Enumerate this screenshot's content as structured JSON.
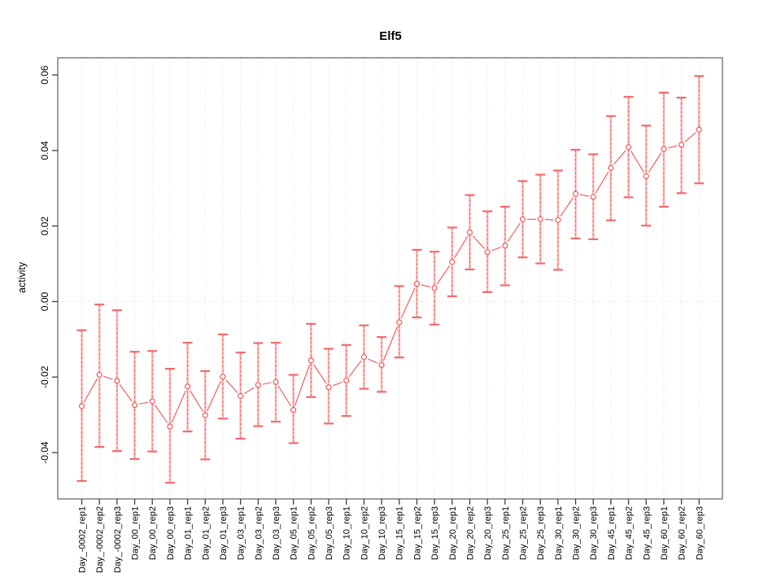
{
  "chart_data": {
    "type": "scatter",
    "title": "Elf5",
    "xlabel": "",
    "ylabel": "activity",
    "legend": "none",
    "marker": "open-circle",
    "categories": [
      "Day_-0002_rep1",
      "Day_-0002_rep2",
      "Day_-0002_rep3",
      "Day_00_rep1",
      "Day_00_rep2",
      "Day_00_rep3",
      "Day_01_rep1",
      "Day_01_rep2",
      "Day_01_rep3",
      "Day_03_rep1",
      "Day_03_rep2",
      "Day_03_rep3",
      "Day_05_rep1",
      "Day_05_rep2",
      "Day_05_rep3",
      "Day_10_rep1",
      "Day_10_rep2",
      "Day_10_rep3",
      "Day_15_rep1",
      "Day_15_rep2",
      "Day_15_rep3",
      "Day_20_rep1",
      "Day_20_rep2",
      "Day_20_rep3",
      "Day_25_rep1",
      "Day_25_rep2",
      "Day_25_rep3",
      "Day_30_rep1",
      "Day_30_rep2",
      "Day_30_rep3",
      "Day_45_rep1",
      "Day_45_rep2",
      "Day_45_rep3",
      "Day_60_rep1",
      "Day_60_rep2",
      "Day_60_rep3"
    ],
    "series": [
      {
        "name": "Elf5 activity",
        "values": [
          -0.0277,
          -0.0194,
          -0.021,
          -0.0274,
          -0.0264,
          -0.0331,
          -0.0225,
          -0.0301,
          -0.0199,
          -0.025,
          -0.0221,
          -0.0213,
          -0.0287,
          -0.0156,
          -0.0227,
          -0.0209,
          -0.0147,
          -0.0168,
          -0.0055,
          0.0047,
          0.0036,
          0.0105,
          0.0183,
          0.0131,
          0.0148,
          0.0218,
          0.0218,
          0.0216,
          0.0285,
          0.0277,
          0.0354,
          0.0409,
          0.0332,
          0.0404,
          0.0415,
          0.0455
        ],
        "ci_lower": [
          -0.0475,
          -0.0385,
          -0.0396,
          -0.0417,
          -0.0397,
          -0.048,
          -0.0344,
          -0.0418,
          -0.031,
          -0.0363,
          -0.033,
          -0.0318,
          -0.0375,
          -0.0253,
          -0.0323,
          -0.0303,
          -0.0231,
          -0.0239,
          -0.0148,
          -0.0042,
          -0.0061,
          0.0014,
          0.0085,
          0.0025,
          0.0043,
          0.0117,
          0.0101,
          0.0084,
          0.0167,
          0.0165,
          0.0215,
          0.0276,
          0.0201,
          0.0251,
          0.0287,
          0.0313
        ],
        "ci_upper": [
          -0.0076,
          -0.0008,
          -0.0023,
          -0.0133,
          -0.0131,
          -0.0178,
          -0.0109,
          -0.0184,
          -0.0087,
          -0.0135,
          -0.011,
          -0.0109,
          -0.0194,
          -0.0059,
          -0.0125,
          -0.0115,
          -0.0063,
          -0.0094,
          0.0041,
          0.0137,
          0.0132,
          0.0196,
          0.0282,
          0.0239,
          0.0251,
          0.0319,
          0.0336,
          0.0347,
          0.0402,
          0.039,
          0.0491,
          0.0542,
          0.0466,
          0.0553,
          0.054,
          0.0597
        ]
      }
    ],
    "ylim": [
      -0.0523,
      0.0645
    ],
    "yticks": [
      -0.04,
      -0.02,
      0,
      0.02,
      0.04,
      0.06
    ],
    "ytick_labels": [
      "-0.04",
      "-0.02",
      "0.00",
      "0.02",
      "0.04",
      "0.06"
    ],
    "grid": {
      "vertical_dotted_per_category": true,
      "horizontal_dotted_at": 0
    },
    "colors": {
      "point": "#EF5350",
      "line": "#EF5350",
      "errorbar_light": "#F9A6A6",
      "errorbar_cap": "#F26B6B",
      "grid": "#DBDBDB",
      "box": "#878787",
      "tick": "#3F3F3F",
      "text": "#000000"
    }
  }
}
